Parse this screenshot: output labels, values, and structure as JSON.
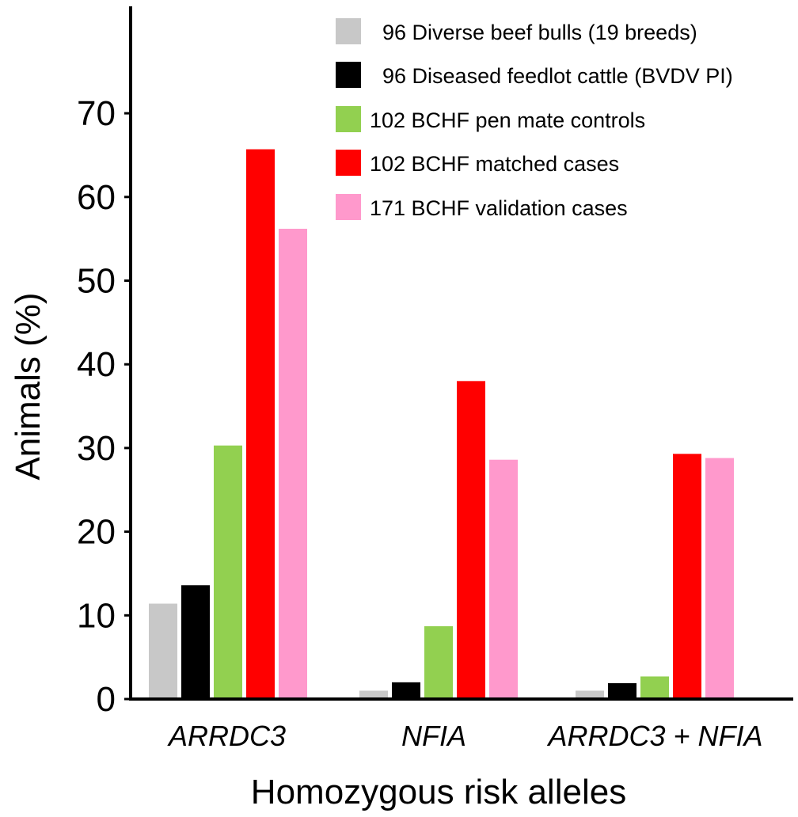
{
  "chart_data": {
    "type": "bar",
    "title": "",
    "xlabel": "Homozygous risk alleles",
    "ylabel": "Animals (%)",
    "ylim": [
      0,
      80
    ],
    "yticks": [
      0,
      10,
      20,
      30,
      40,
      50,
      60,
      70
    ],
    "grid": false,
    "legend_position": "top-right",
    "categories": [
      "ARRDC3",
      "NFIA",
      "ARRDC3 + NFIA"
    ],
    "series": [
      {
        "name": "96 Diverse beef bulls (19 breeds)",
        "color": "#c8c8c8",
        "values": [
          11.4,
          1.0,
          1.0
        ]
      },
      {
        "name": "96 Diseased feedlot cattle (BVDV PI)",
        "color": "#000000",
        "values": [
          13.6,
          2.0,
          1.9
        ]
      },
      {
        "name": "102 BCHF pen mate controls",
        "color": "#92d050",
        "values": [
          30.3,
          8.7,
          2.7
        ]
      },
      {
        "name": "102 BCHF matched cases",
        "color": "#ff0000",
        "values": [
          65.7,
          38.0,
          29.3
        ]
      },
      {
        "name": "171 BCHF validation cases",
        "color": "#ff99cc",
        "values": [
          56.2,
          28.6,
          28.8
        ]
      }
    ]
  }
}
